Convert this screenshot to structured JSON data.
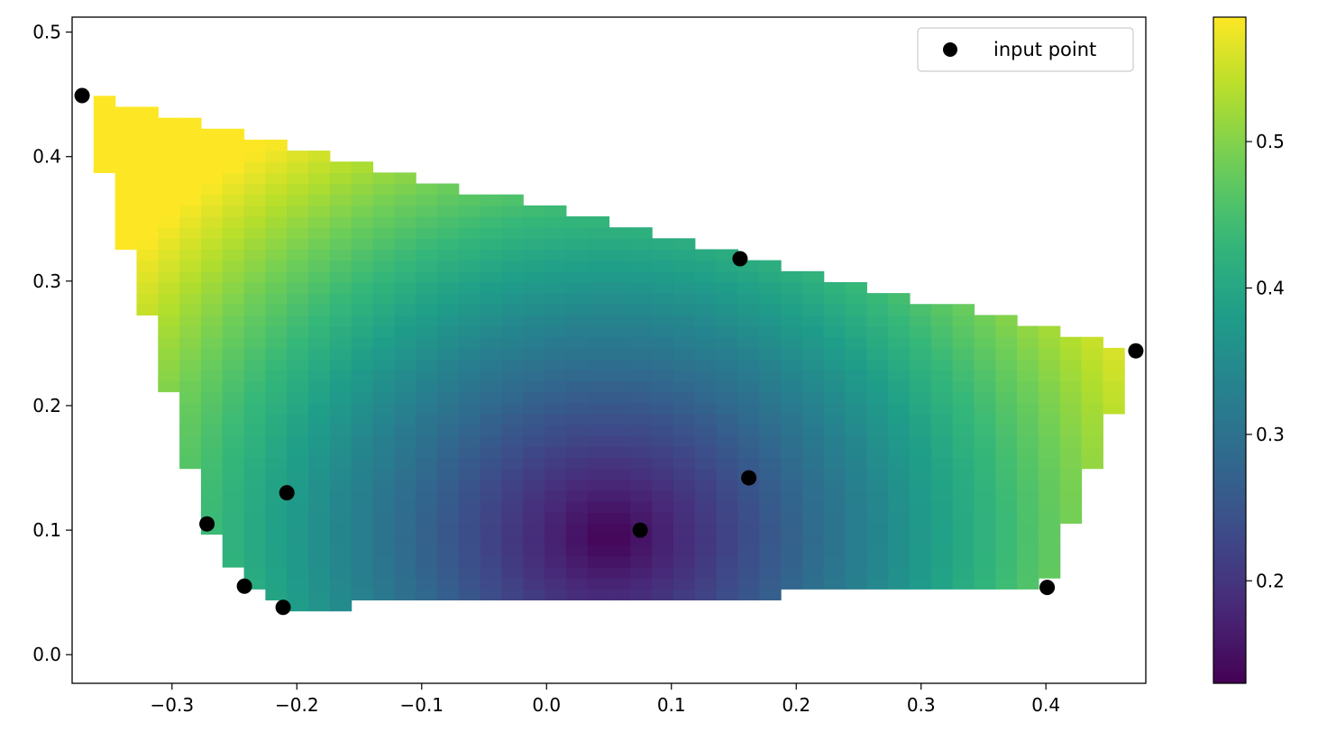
{
  "chart_data": {
    "type": "heatmap",
    "title": "",
    "xlabel": "",
    "ylabel": "",
    "xlim": [
      -0.38,
      0.48
    ],
    "ylim": [
      -0.023,
      0.512
    ],
    "xticks": [
      -0.3,
      -0.2,
      -0.1,
      0.0,
      0.1,
      0.2,
      0.3,
      0.4
    ],
    "yticks": [
      0.0,
      0.1,
      0.2,
      0.3,
      0.4,
      0.5
    ],
    "xtick_labels": [
      "−0.3",
      "−0.2",
      "−0.1",
      "0.0",
      "0.1",
      "0.2",
      "0.3",
      "0.4"
    ],
    "ytick_labels": [
      "0.0",
      "0.1",
      "0.2",
      "0.3",
      "0.4",
      "0.5"
    ],
    "grid": false,
    "colormap": "viridis",
    "colorbar": {
      "range": [
        0.13,
        0.585
      ],
      "ticks": [
        0.2,
        0.3,
        0.4,
        0.5
      ],
      "tick_labels": [
        "0.2",
        "0.3",
        "0.4",
        "0.5"
      ]
    },
    "legend": {
      "placement": "top-right",
      "entries": [
        "input point"
      ]
    },
    "series": [
      {
        "name": "input point",
        "kind": "scatter",
        "color": "#000000",
        "points": [
          {
            "x": -0.372,
            "y": 0.449
          },
          {
            "x": 0.155,
            "y": 0.318
          },
          {
            "x": 0.472,
            "y": 0.244
          },
          {
            "x": 0.162,
            "y": 0.142
          },
          {
            "x": -0.208,
            "y": 0.13
          },
          {
            "x": -0.272,
            "y": 0.105
          },
          {
            "x": 0.075,
            "y": 0.1
          },
          {
            "x": -0.242,
            "y": 0.055
          },
          {
            "x": 0.401,
            "y": 0.054
          },
          {
            "x": -0.211,
            "y": 0.038
          }
        ]
      }
    ]
  }
}
